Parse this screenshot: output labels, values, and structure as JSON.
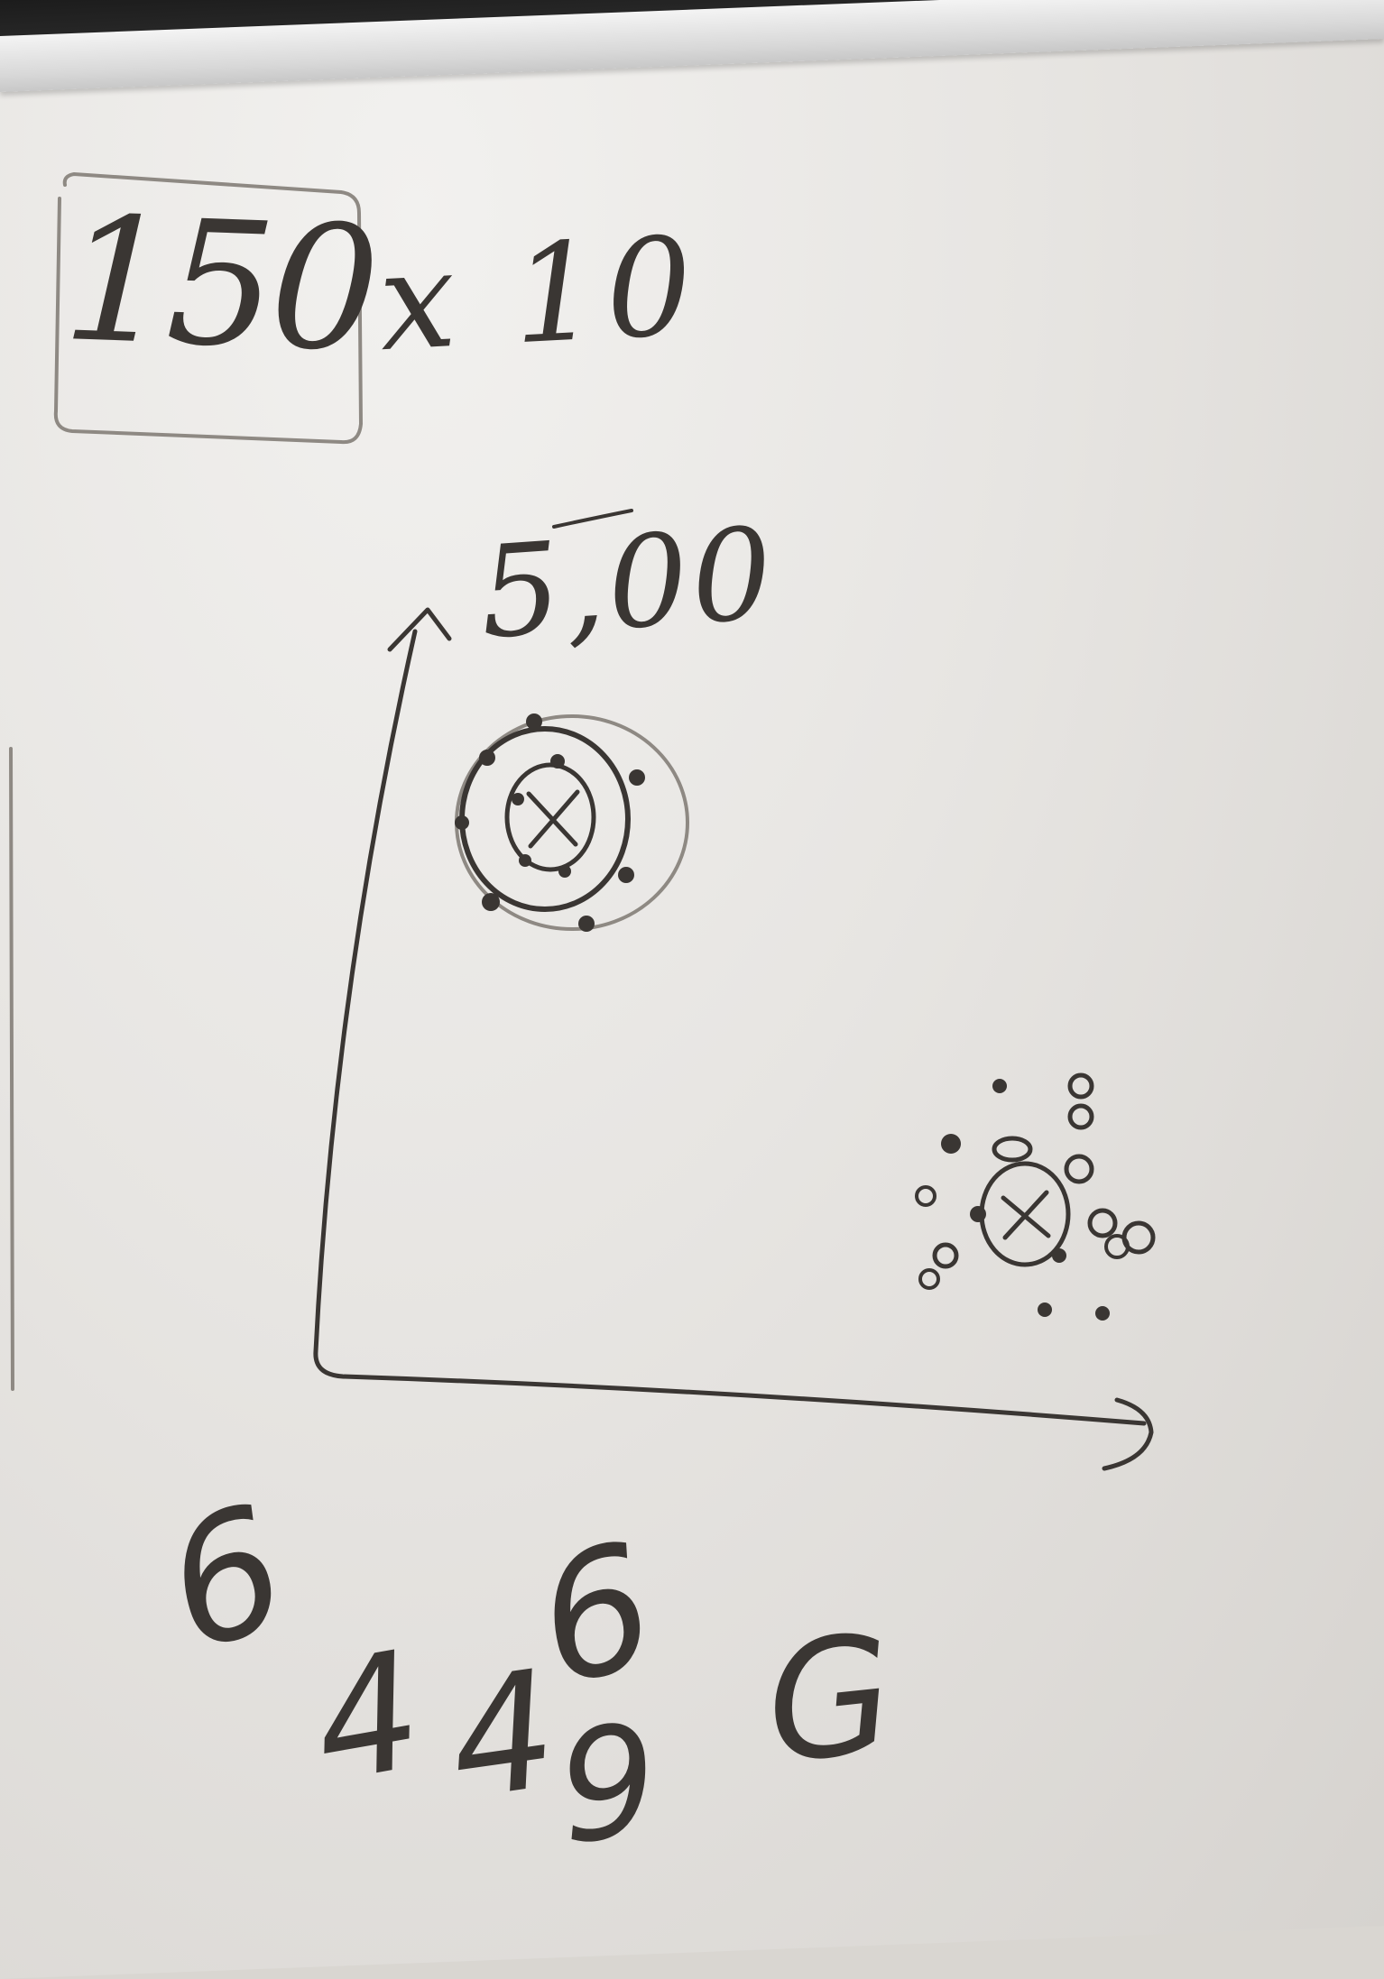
{
  "board": {
    "formula": {
      "boxed_number": "150",
      "multiplier": "x 10"
    },
    "axis_top_label": "5,00",
    "bottom_marks": [
      "6",
      "6",
      "4",
      "4",
      "9",
      "G"
    ]
  },
  "colors": {
    "ink": "#3a3633",
    "board": "#eceae7",
    "frame": "#1c1c1c"
  }
}
